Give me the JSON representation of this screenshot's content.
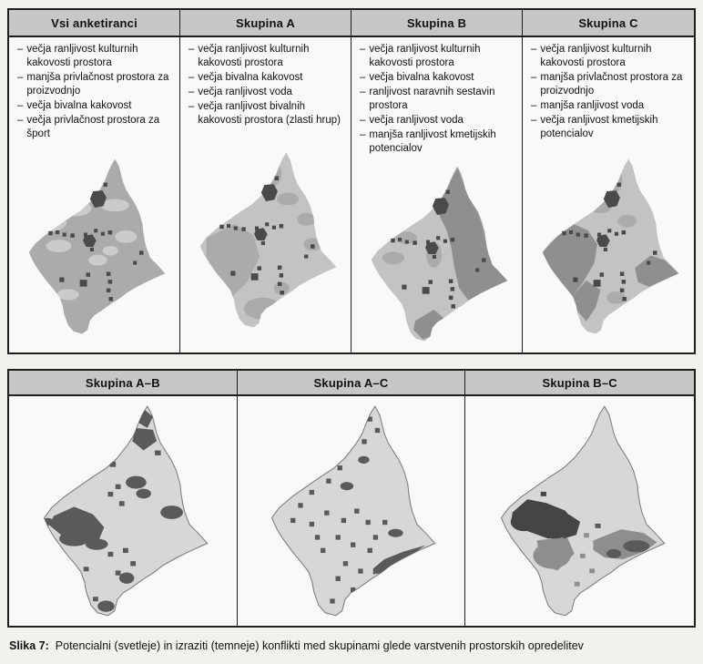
{
  "bullet_marker": "–",
  "caption": {
    "label": "Slika 7:",
    "text": "Potencialni (svetleje) in izraziti (temneje) konflikti med skupinami glede varstvenih prostorskih opredelitev"
  },
  "colors": {
    "paper": "#f2f1ee",
    "panel_bg": "#faf9f7",
    "header_bg": "#c7c7c5",
    "border": "#1e1e1e",
    "map_base_med": "#ababa9",
    "map_base_light": "#c3c3c1",
    "map_light_patch": "#cbcbc9",
    "map_region_dark": "#8f8f8d",
    "map_dot": "#4a4a48",
    "bmap_base": "#d7d7d5",
    "bmap_outline": "#7a7a78",
    "bmap_dark": "#5a5a58",
    "bmap_darkest": "#454543",
    "bmap_mid": "#8e8e8c"
  },
  "top_panel": {
    "columns": [
      {
        "title": "Vsi anketiranci",
        "bullets": [
          "večja ranljivost kulturnih kakovosti prostora",
          "manjša privlačnost prostora za proizvodnjo",
          "večja bivalna kakovost",
          "večja privlačnost prostora za šport"
        ]
      },
      {
        "title": "Skupina A",
        "bullets": [
          "večja ranljivost kulturnih kakovosti prostora",
          "večja bivalna kakovost",
          "večja ranljivost voda",
          "večja ranljivost bivalnih kakovosti prostora (zlasti hrup)"
        ]
      },
      {
        "title": "Skupina B",
        "bullets": [
          "večja ranljivost kulturnih kakovosti prostora",
          "večja bivalna kakovost",
          "ranljivost naravnih sestavin prostora",
          "večja ranljivost voda",
          "manjša ranljivost kmetijskih potencialov"
        ]
      },
      {
        "title": "Skupina C",
        "bullets": [
          "večja ranljivost kulturnih kakovosti prostora",
          "manjša privlačnost prostora za proizvodnjo",
          "manjša ranljivost voda",
          "večja ranljivost kmetijskih potencialov"
        ]
      }
    ]
  },
  "bottom_panel": {
    "columns": [
      {
        "title": "Skupina A–B"
      },
      {
        "title": "Skupina A–C"
      },
      {
        "title": "Skupina B–C"
      }
    ]
  }
}
